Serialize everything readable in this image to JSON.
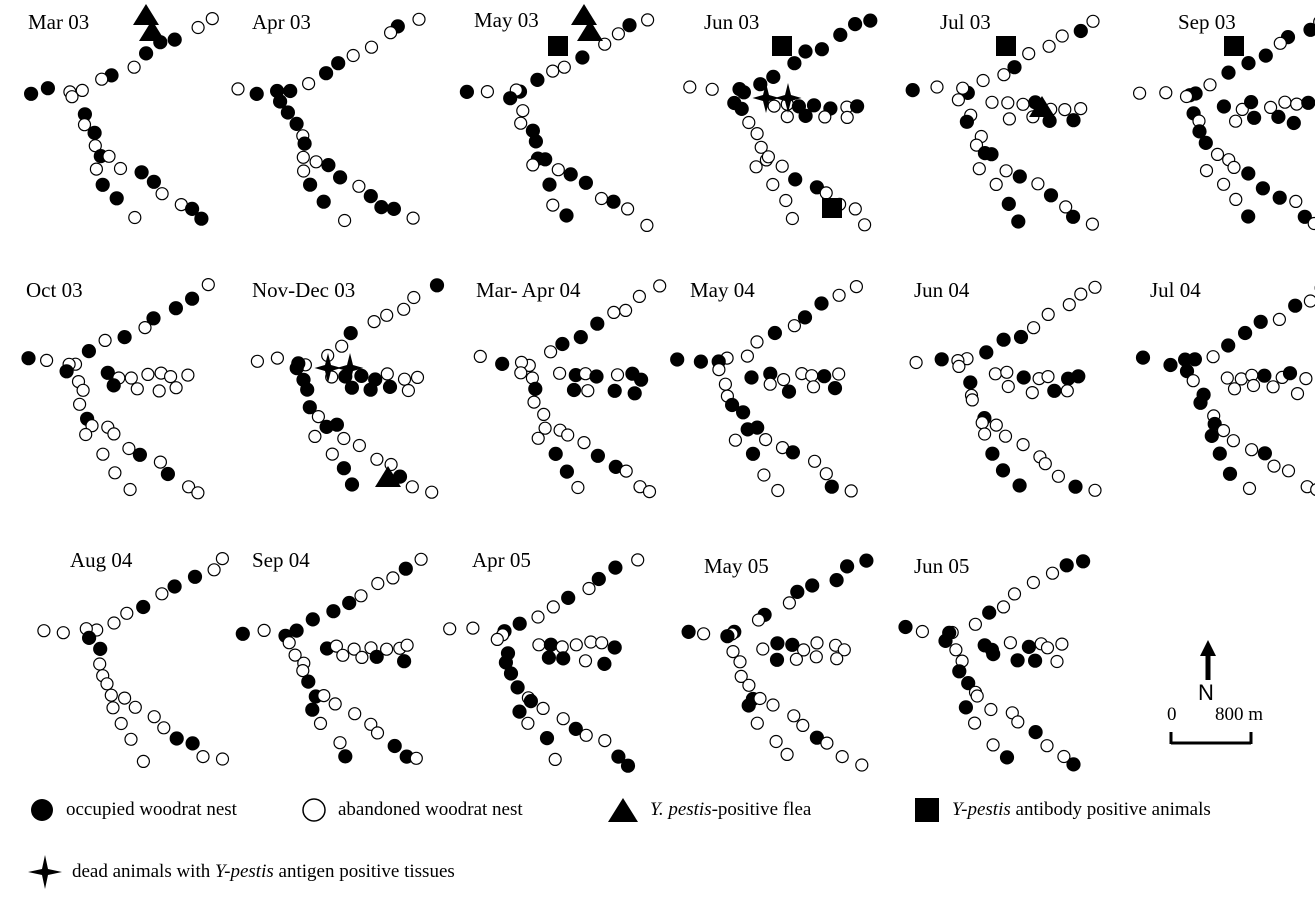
{
  "panels": [
    {
      "label": "Mar 03",
      "flea_count": 2,
      "antibody_count": 0,
      "dead_antigen_count": 0
    },
    {
      "label": "Apr 03",
      "flea_count": 0,
      "antibody_count": 0,
      "dead_antigen_count": 0
    },
    {
      "label": "May 03",
      "flea_count": 2,
      "antibody_count": 1,
      "dead_antigen_count": 0
    },
    {
      "label": "Jun 03",
      "flea_count": 0,
      "antibody_count": 2,
      "dead_antigen_count": 2
    },
    {
      "label": "Jul 03",
      "flea_count": 1,
      "antibody_count": 1,
      "dead_antigen_count": 0
    },
    {
      "label": "Sep 03",
      "flea_count": 0,
      "antibody_count": 1,
      "dead_antigen_count": 0
    },
    {
      "label": "Oct 03",
      "flea_count": 0,
      "antibody_count": 0,
      "dead_antigen_count": 0
    },
    {
      "label": "Nov-Dec 03",
      "flea_count": 1,
      "antibody_count": 0,
      "dead_antigen_count": 2
    },
    {
      "label": "Mar- Apr 04",
      "flea_count": 0,
      "antibody_count": 0,
      "dead_antigen_count": 0
    },
    {
      "label": "May 04",
      "flea_count": 0,
      "antibody_count": 0,
      "dead_antigen_count": 0
    },
    {
      "label": "Jun 04",
      "flea_count": 0,
      "antibody_count": 0,
      "dead_antigen_count": 0
    },
    {
      "label": "Jul 04",
      "flea_count": 0,
      "antibody_count": 0,
      "dead_antigen_count": 0
    },
    {
      "label": "Aug 04",
      "flea_count": 0,
      "antibody_count": 0,
      "dead_antigen_count": 0
    },
    {
      "label": "Sep 04",
      "flea_count": 0,
      "antibody_count": 0,
      "dead_antigen_count": 0
    },
    {
      "label": "Apr 05",
      "flea_count": 0,
      "antibody_count": 0,
      "dead_antigen_count": 0
    },
    {
      "label": "May 05",
      "flea_count": 0,
      "antibody_count": 0,
      "dead_antigen_count": 0
    },
    {
      "label": "Jun 05",
      "flea_count": 0,
      "antibody_count": 0,
      "dead_antigen_count": 0
    }
  ],
  "legend": {
    "occupied": "occupied woodrat nest",
    "abandoned": "abandoned woodrat nest",
    "flea_species": "Y. pestis",
    "flea_rest": "-positive flea",
    "antibody_species": "Y-pestis",
    "antibody_rest": "antibody positive animals",
    "dead_prefix": "dead animals with",
    "dead_species": "Y-pestis",
    "dead_rest": "antigen positive tissues"
  },
  "map_extras": {
    "north_label": "N",
    "scale_start": "0",
    "scale_end": "800 m"
  },
  "colors": {
    "ink": "#000000",
    "paper": "#ffffff"
  }
}
